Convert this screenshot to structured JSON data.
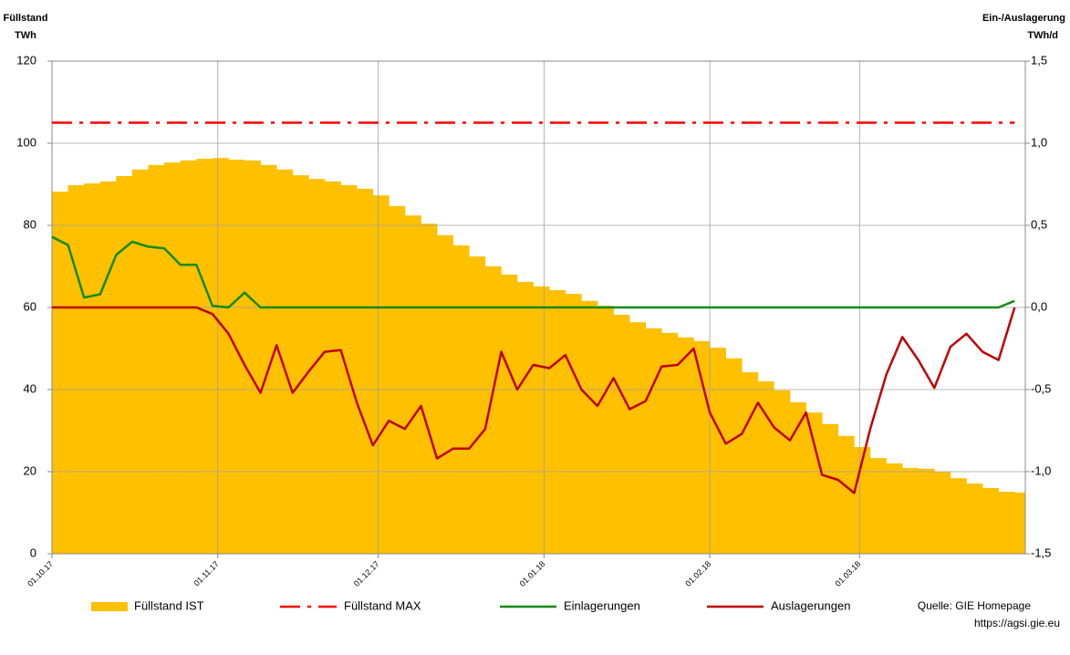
{
  "chart_data": {
    "type": "combo",
    "ylabel": [
      "Füllstand",
      "TWh"
    ],
    "y2label": [
      "Ein-/Auslagerung",
      "TWh/d"
    ],
    "source": [
      "Quelle: GIE Homepage",
      "https://agsi.gie.eu"
    ],
    "x": [
      "01.10.17",
      "04.10.17",
      "07.10.17",
      "10.10.17",
      "13.10.17",
      "16.10.17",
      "19.10.17",
      "22.10.17",
      "25.10.17",
      "28.10.17",
      "31.10.17",
      "03.11.17",
      "06.11.17",
      "09.11.17",
      "12.11.17",
      "15.11.17",
      "18.11.17",
      "21.11.17",
      "24.11.17",
      "27.11.17",
      "30.11.17",
      "03.12.17",
      "06.12.17",
      "09.12.17",
      "12.12.17",
      "15.12.17",
      "18.12.17",
      "21.12.17",
      "24.12.17",
      "27.12.17",
      "30.12.17",
      "02.01.18",
      "05.01.18",
      "08.01.18",
      "11.01.18",
      "14.01.18",
      "17.01.18",
      "20.01.18",
      "23.01.18",
      "26.01.18",
      "29.01.18",
      "01.02.18",
      "04.02.18",
      "07.02.18",
      "10.02.18",
      "13.02.18",
      "16.02.18",
      "19.02.18",
      "22.02.18",
      "25.02.18",
      "28.02.18",
      "03.03.18",
      "06.03.18",
      "09.03.18",
      "12.03.18",
      "15.03.18",
      "18.03.18",
      "21.03.18",
      "24.03.18",
      "27.03.18",
      "30.03.18"
    ],
    "xlim": [
      "01.10.17",
      "31.03.18"
    ],
    "xticks": [
      "01.10.17",
      "01.11.17",
      "01.12.17",
      "01.01.18",
      "01.02.18",
      "01.03.18"
    ],
    "ylim": [
      0,
      120
    ],
    "yticks": [
      0,
      20,
      40,
      60,
      80,
      100,
      120
    ],
    "y2lim": [
      -1.5,
      1.5
    ],
    "y2ticks": [
      {
        "value": -1.5,
        "label": "-1,5"
      },
      {
        "value": -1.0,
        "label": "-1,0"
      },
      {
        "value": -0.5,
        "label": "-0,5"
      },
      {
        "value": 0,
        "label": "0,0"
      },
      {
        "value": 0.5,
        "label": "0,5"
      },
      {
        "value": 1.0,
        "label": "1,0"
      },
      {
        "value": 1.5,
        "label": "1,5"
      }
    ],
    "grid": true,
    "legend": "bottom",
    "series": [
      {
        "name": "Füllstand IST",
        "type": "bar",
        "color": "#ffc000",
        "values": [
          88.2,
          89.8,
          90.2,
          90.7,
          92,
          93.6,
          94.7,
          95.3,
          95.8,
          96.2,
          96.4,
          96,
          95.8,
          94.7,
          93.6,
          92.2,
          91.3,
          90.7,
          89.8,
          88.9,
          87.3,
          84.7,
          82.4,
          80.4,
          77.6,
          75.1,
          72.4,
          70,
          68,
          66.2,
          65.1,
          64.2,
          63.3,
          61.6,
          60.4,
          58.2,
          56.4,
          54.9,
          53.8,
          52.7,
          51.8,
          50.2,
          47.6,
          44.2,
          42,
          39.8,
          36.9,
          34.4,
          31.6,
          28.7,
          26,
          23.3,
          22,
          20.9,
          20.7,
          20,
          18.4,
          17.1,
          16,
          15.1,
          14.9
        ]
      },
      {
        "name": "Füllstand MAX",
        "type": "line",
        "linestyle": "dashdot",
        "color": "#ff0000",
        "values": [
          105,
          105,
          105,
          105,
          105,
          105,
          105,
          105,
          105,
          105,
          105,
          105,
          105,
          105,
          105,
          105,
          105,
          105,
          105,
          105,
          105,
          105,
          105,
          105,
          105,
          105,
          105,
          105,
          105,
          105,
          105,
          105,
          105,
          105,
          105,
          105,
          105,
          105,
          105,
          105,
          105,
          105,
          105,
          105,
          105,
          105,
          105,
          105,
          105,
          105,
          105,
          105,
          105,
          105,
          105,
          105,
          105,
          105,
          105,
          105,
          105
        ]
      },
      {
        "name": "Einlagerungen",
        "type": "line",
        "axis": "y2",
        "color": "#138a13",
        "values": [
          0.43,
          0.38,
          0.06,
          0.08,
          0.32,
          0.4,
          0.37,
          0.36,
          0.26,
          0.26,
          0.01,
          0,
          0.09,
          0,
          0,
          0,
          0,
          0,
          0,
          0,
          0,
          0,
          0,
          0,
          0,
          0,
          0,
          0,
          0,
          0,
          0,
          0,
          0,
          0,
          0,
          0,
          0,
          0,
          0,
          0,
          0,
          0,
          0,
          0,
          0,
          0,
          0,
          0,
          0,
          0,
          0,
          0,
          0,
          0,
          0,
          0,
          0,
          0,
          0,
          0,
          0.04
        ]
      },
      {
        "name": "Auslagerungen",
        "type": "line",
        "axis": "y2",
        "color": "#c00000",
        "values": [
          0,
          0,
          0,
          0,
          0,
          0,
          0,
          0,
          0,
          0,
          -0.04,
          -0.16,
          -0.35,
          -0.52,
          -0.23,
          -0.52,
          -0.39,
          -0.27,
          -0.26,
          -0.58,
          -0.84,
          -0.69,
          -0.74,
          -0.6,
          -0.92,
          -0.86,
          -0.86,
          -0.74,
          -0.27,
          -0.5,
          -0.35,
          -0.37,
          -0.29,
          -0.5,
          -0.6,
          -0.43,
          -0.62,
          -0.57,
          -0.36,
          -0.35,
          -0.25,
          -0.64,
          -0.83,
          -0.77,
          -0.58,
          -0.73,
          -0.81,
          -0.64,
          -1.02,
          -1.05,
          -1.13,
          -0.74,
          -0.41,
          -0.18,
          -0.32,
          -0.49,
          -0.24,
          -0.16,
          -0.27,
          -0.32,
          0
        ]
      }
    ]
  }
}
